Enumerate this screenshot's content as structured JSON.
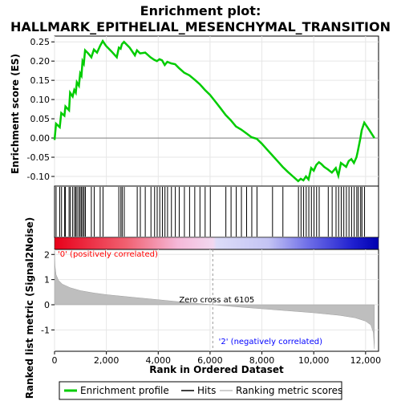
{
  "chart_data": {
    "type": "line",
    "title_line1": "Enrichment plot:",
    "title_line2": "HALLMARK_EPITHELIAL_MESENCHYMAL_TRANSITION",
    "xlabel": "Rank in Ordered Dataset",
    "ylabel_top": "Enrichment score (ES)",
    "ylabel_bottom": "Ranked list metric (Signal2Noise)",
    "xlim": [
      0,
      12500
    ],
    "x_ticks": [
      0,
      2000,
      4000,
      6000,
      8000,
      10000,
      12000
    ],
    "x_tick_labels": [
      "0",
      "2,000",
      "4,000",
      "6,000",
      "8,000",
      "10,000",
      "12,000"
    ],
    "es_ylim": [
      -0.125,
      0.265
    ],
    "es_ticks": [
      0.25,
      0.2,
      0.15,
      0.1,
      0.05,
      0.0,
      -0.05,
      -0.1
    ],
    "es_tick_labels": [
      "0.25",
      "0.20",
      "0.15",
      "0.10",
      "0.05",
      "0.00",
      "-0.05",
      "-0.10"
    ],
    "metric_ylim": [
      -1.85,
      2.2
    ],
    "metric_ticks": [
      2,
      1,
      0,
      -1
    ],
    "metric_tick_labels": [
      "2",
      "1",
      "0",
      "-1"
    ],
    "total_genes": 12340,
    "zero_cross": 6105,
    "zero_cross_label": "Zero cross at 6105",
    "positive_label": "'0' (positively correlated)",
    "negative_label": "'2' (negatively correlated)",
    "colors": {
      "es_line": "#00cc00",
      "hits": "#000000",
      "metric_fill": "#bebebe",
      "positive_text": "#ff0000",
      "negative_text": "#0000ff",
      "frame": "#000000",
      "grid": "#e6e6e6",
      "zero_line": "#808080"
    },
    "series": [
      {
        "name": "Enrichment profile",
        "points": [
          [
            0,
            -0.005
          ],
          [
            60,
            0.037
          ],
          [
            200,
            0.028
          ],
          [
            260,
            0.065
          ],
          [
            380,
            0.058
          ],
          [
            420,
            0.082
          ],
          [
            560,
            0.072
          ],
          [
            600,
            0.118
          ],
          [
            700,
            0.108
          ],
          [
            760,
            0.125
          ],
          [
            820,
            0.118
          ],
          [
            860,
            0.145
          ],
          [
            940,
            0.136
          ],
          [
            990,
            0.168
          ],
          [
            1040,
            0.162
          ],
          [
            1080,
            0.2
          ],
          [
            1130,
            0.193
          ],
          [
            1180,
            0.228
          ],
          [
            1300,
            0.22
          ],
          [
            1420,
            0.21
          ],
          [
            1520,
            0.23
          ],
          [
            1640,
            0.222
          ],
          [
            1760,
            0.24
          ],
          [
            1860,
            0.252
          ],
          [
            1980,
            0.24
          ],
          [
            2200,
            0.225
          ],
          [
            2400,
            0.21
          ],
          [
            2480,
            0.235
          ],
          [
            2550,
            0.232
          ],
          [
            2600,
            0.244
          ],
          [
            2680,
            0.25
          ],
          [
            2900,
            0.235
          ],
          [
            3100,
            0.215
          ],
          [
            3180,
            0.228
          ],
          [
            3300,
            0.22
          ],
          [
            3500,
            0.222
          ],
          [
            3700,
            0.21
          ],
          [
            3850,
            0.203
          ],
          [
            3950,
            0.2
          ],
          [
            4050,
            0.205
          ],
          [
            4150,
            0.202
          ],
          [
            4250,
            0.19
          ],
          [
            4350,
            0.198
          ],
          [
            4500,
            0.194
          ],
          [
            4650,
            0.192
          ],
          [
            4800,
            0.182
          ],
          [
            5000,
            0.17
          ],
          [
            5200,
            0.163
          ],
          [
            5400,
            0.152
          ],
          [
            5600,
            0.14
          ],
          [
            5800,
            0.125
          ],
          [
            6000,
            0.112
          ],
          [
            6200,
            0.095
          ],
          [
            6400,
            0.078
          ],
          [
            6600,
            0.06
          ],
          [
            6800,
            0.046
          ],
          [
            7000,
            0.03
          ],
          [
            7200,
            0.022
          ],
          [
            7400,
            0.012
          ],
          [
            7600,
            0.002
          ],
          [
            7800,
            -0.002
          ],
          [
            8000,
            -0.015
          ],
          [
            8200,
            -0.03
          ],
          [
            8400,
            -0.045
          ],
          [
            8600,
            -0.06
          ],
          [
            8800,
            -0.075
          ],
          [
            9000,
            -0.088
          ],
          [
            9200,
            -0.1
          ],
          [
            9400,
            -0.112
          ],
          [
            9500,
            -0.106
          ],
          [
            9600,
            -0.11
          ],
          [
            9700,
            -0.1
          ],
          [
            9800,
            -0.108
          ],
          [
            9900,
            -0.078
          ],
          [
            10000,
            -0.085
          ],
          [
            10100,
            -0.07
          ],
          [
            10200,
            -0.063
          ],
          [
            10300,
            -0.068
          ],
          [
            10400,
            -0.075
          ],
          [
            10550,
            -0.082
          ],
          [
            10700,
            -0.09
          ],
          [
            10850,
            -0.078
          ],
          [
            10950,
            -0.098
          ],
          [
            11050,
            -0.065
          ],
          [
            11150,
            -0.07
          ],
          [
            11250,
            -0.075
          ],
          [
            11350,
            -0.06
          ],
          [
            11450,
            -0.055
          ],
          [
            11550,
            -0.065
          ],
          [
            11650,
            -0.05
          ],
          [
            11700,
            -0.035
          ],
          [
            11800,
            0.0
          ],
          [
            11850,
            0.02
          ],
          [
            11950,
            0.04
          ],
          [
            12050,
            0.03
          ],
          [
            12150,
            0.02
          ],
          [
            12340,
            0.0
          ]
        ]
      },
      {
        "name": "Hits"
      },
      {
        "name": "Ranking metric scores"
      }
    ],
    "hits": [
      60,
      200,
      270,
      390,
      420,
      560,
      610,
      700,
      770,
      820,
      870,
      940,
      990,
      1040,
      1090,
      1140,
      1190,
      1420,
      1530,
      1760,
      1870,
      2480,
      2560,
      2610,
      2690,
      3190,
      3310,
      3500,
      3720,
      3860,
      3960,
      4060,
      4160,
      4260,
      4360,
      4510,
      4660,
      4810,
      5010,
      5210,
      5410,
      5610,
      5810,
      6010,
      6610,
      6810,
      7010,
      7210,
      7410,
      7610,
      7810,
      8410,
      8810,
      9410,
      9510,
      9610,
      9710,
      9810,
      9910,
      10010,
      10110,
      10210,
      10560,
      10710,
      10860,
      10960,
      11060,
      11160,
      11260,
      11360,
      11460,
      11560,
      11660,
      11720,
      11810,
      11860,
      11960
    ],
    "metric_curve": [
      [
        0,
        2.15
      ],
      [
        20,
        1.55
      ],
      [
        60,
        1.2
      ],
      [
        150,
        0.98
      ],
      [
        300,
        0.82
      ],
      [
        600,
        0.68
      ],
      [
        1000,
        0.56
      ],
      [
        1500,
        0.47
      ],
      [
        2000,
        0.4
      ],
      [
        3000,
        0.3
      ],
      [
        4000,
        0.2
      ],
      [
        5000,
        0.1
      ],
      [
        6105,
        0.0
      ],
      [
        7000,
        -0.08
      ],
      [
        8000,
        -0.16
      ],
      [
        9000,
        -0.24
      ],
      [
        10000,
        -0.32
      ],
      [
        11000,
        -0.42
      ],
      [
        11600,
        -0.52
      ],
      [
        12000,
        -0.65
      ],
      [
        12200,
        -0.8
      ],
      [
        12300,
        -1.1
      ],
      [
        12340,
        -1.75
      ]
    ]
  },
  "legend": {
    "items": [
      {
        "label": "Enrichment profile"
      },
      {
        "label": "Hits"
      },
      {
        "label": "Ranking metric scores"
      }
    ]
  }
}
